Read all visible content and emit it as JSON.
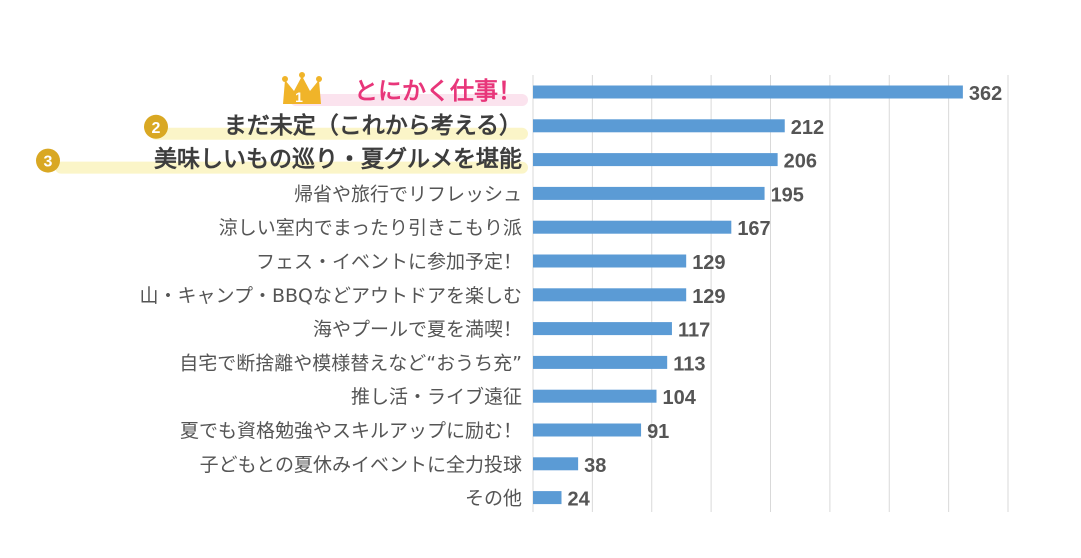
{
  "chart_data": {
    "type": "bar",
    "orientation": "horizontal",
    "categories": [
      "とにかく仕事！",
      "まだ未定（これから考える）",
      "美味しいもの巡り・夏グルメを堪能",
      "帰省や旅行でリフレッシュ",
      "涼しい室内でまったり引きこもり派",
      "フェス・イベントに参加予定！",
      "山・キャンプ・BBQなどアウトドアを楽しむ",
      "海やプールで夏を満喫！",
      "自宅で断捨離や模様替えなど“おうち充”",
      "推し活・ライブ遠征",
      "夏でも資格勉強やスキルアップに励む！",
      "子どもとの夏休みイベントに全力投球",
      "その他"
    ],
    "values": [
      362,
      212,
      206,
      195,
      167,
      129,
      129,
      117,
      113,
      104,
      91,
      38,
      24
    ],
    "rank_badges": [
      "1",
      "2",
      "3"
    ],
    "xlim": [
      0,
      400
    ],
    "grid": true,
    "title": "",
    "xlabel": "",
    "ylabel": "",
    "colors": {
      "bar": "#5b9bd5",
      "rank1_text": "#e8367a",
      "rank1_highlight": "#fbe3ee",
      "rank_highlight": "#fbf5c8",
      "badge": "#d9a823",
      "crown": "#f0b429"
    }
  }
}
